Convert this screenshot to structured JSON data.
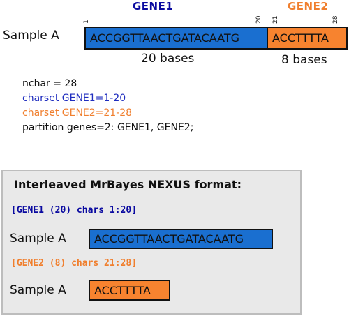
{
  "colors": {
    "gene1": "#0a0aa0",
    "gene2": "#f07f2e",
    "box1": "#1a6fd0",
    "box2": "#f7832f"
  },
  "top": {
    "gene1_title": "GENE1",
    "gene2_title": "GENE2",
    "ticks": [
      "1",
      "20",
      "21",
      "28"
    ],
    "sample_label": "Sample A",
    "seq1": "ACCGGTTAACTGATACAATG",
    "seq2": "ACCTTTTA",
    "bases1": "20 bases",
    "bases2": "8 bases"
  },
  "code": {
    "line1": "nchar = 28",
    "line2": "charset GENE1=1-20",
    "line3": "charset GENE2=21-28",
    "line4": "partition genes=2: GENE1, GENE2;"
  },
  "panel": {
    "title": "Interleaved MrBayes NEXUS format:",
    "part1_head": "[GENE1 (20) chars 1:20]",
    "part1_sample": "Sample A",
    "part1_seq": "ACCGGTTAACTGATACAATG",
    "part2_head": "[GENE2 (8) chars 21:28]",
    "part2_sample": "Sample A",
    "part2_seq": "ACCTTTTA"
  }
}
